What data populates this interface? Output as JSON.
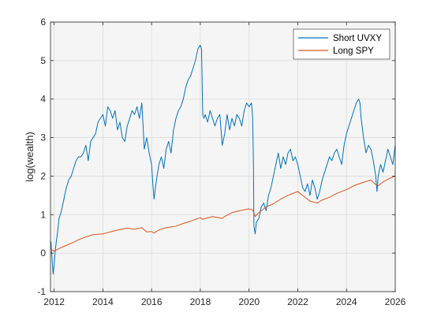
{
  "chart_data": {
    "type": "line",
    "xlabel": "",
    "ylabel": "log(wealth)",
    "xlim": [
      2011.85,
      2026.0
    ],
    "ylim": [
      -1,
      6
    ],
    "xticks": [
      2012,
      2014,
      2016,
      2018,
      2020,
      2022,
      2024,
      2026
    ],
    "yticks": [
      -1,
      0,
      1,
      2,
      3,
      4,
      5,
      6
    ],
    "grid": true,
    "legend": "top-right",
    "background": "#f5f5f5",
    "series": [
      {
        "name": "Short UVXY",
        "color": "#0072bd",
        "x": [
          2011.87,
          2011.92,
          2011.96,
          2012.0,
          2012.05,
          2012.1,
          2012.15,
          2012.2,
          2012.3,
          2012.4,
          2012.5,
          2012.6,
          2012.7,
          2012.8,
          2012.9,
          2013.0,
          2013.1,
          2013.2,
          2013.3,
          2013.4,
          2013.5,
          2013.6,
          2013.7,
          2013.8,
          2013.9,
          2014.0,
          2014.1,
          2014.2,
          2014.3,
          2014.4,
          2014.5,
          2014.6,
          2014.7,
          2014.8,
          2014.9,
          2015.0,
          2015.1,
          2015.2,
          2015.3,
          2015.4,
          2015.5,
          2015.6,
          2015.65,
          2015.7,
          2015.8,
          2015.9,
          2016.0,
          2016.05,
          2016.1,
          2016.2,
          2016.3,
          2016.4,
          2016.5,
          2016.6,
          2016.7,
          2016.8,
          2016.9,
          2017.0,
          2017.1,
          2017.2,
          2017.3,
          2017.4,
          2017.5,
          2017.6,
          2017.7,
          2017.8,
          2017.9,
          2018.0,
          2018.05,
          2018.08,
          2018.1,
          2018.15,
          2018.2,
          2018.3,
          2018.4,
          2018.5,
          2018.6,
          2018.7,
          2018.8,
          2018.9,
          2019.0,
          2019.1,
          2019.2,
          2019.3,
          2019.4,
          2019.5,
          2019.6,
          2019.7,
          2019.8,
          2019.9,
          2020.0,
          2020.1,
          2020.15,
          2020.18,
          2020.2,
          2020.25,
          2020.3,
          2020.4,
          2020.5,
          2020.6,
          2020.7,
          2020.8,
          2020.9,
          2021.0,
          2021.1,
          2021.2,
          2021.3,
          2021.4,
          2021.5,
          2021.6,
          2021.7,
          2021.8,
          2021.9,
          2022.0,
          2022.1,
          2022.2,
          2022.3,
          2022.4,
          2022.5,
          2022.6,
          2022.7,
          2022.8,
          2022.9,
          2023.0,
          2023.1,
          2023.2,
          2023.3,
          2023.4,
          2023.5,
          2023.6,
          2023.7,
          2023.8,
          2023.9,
          2024.0,
          2024.1,
          2024.2,
          2024.3,
          2024.4,
          2024.5,
          2024.55,
          2024.6,
          2024.7,
          2024.8,
          2024.9,
          2025.0,
          2025.1,
          2025.2,
          2025.25,
          2025.3,
          2025.4,
          2025.5,
          2025.6,
          2025.7,
          2025.8,
          2025.9,
          2026.0
        ],
        "y": [
          0.3,
          -0.2,
          -0.55,
          -0.3,
          0.1,
          0.35,
          0.6,
          0.9,
          1.1,
          1.4,
          1.7,
          1.9,
          2.0,
          2.2,
          2.4,
          2.5,
          2.5,
          2.6,
          2.8,
          2.4,
          2.9,
          3.0,
          3.1,
          3.4,
          3.5,
          3.6,
          3.3,
          3.8,
          3.7,
          3.5,
          3.7,
          3.2,
          3.4,
          3.0,
          2.9,
          3.3,
          3.5,
          3.7,
          3.6,
          3.8,
          3.5,
          3.9,
          3.3,
          2.7,
          3.0,
          2.6,
          2.3,
          1.8,
          1.4,
          1.9,
          2.3,
          2.5,
          2.2,
          2.7,
          2.9,
          2.6,
          3.2,
          3.5,
          3.7,
          3.8,
          4.0,
          4.3,
          4.5,
          4.6,
          4.8,
          5.0,
          5.3,
          5.4,
          5.3,
          4.2,
          3.6,
          3.5,
          3.6,
          3.4,
          3.7,
          3.5,
          3.3,
          3.5,
          3.6,
          2.8,
          3.1,
          3.6,
          3.2,
          3.5,
          3.3,
          3.6,
          3.5,
          3.3,
          3.7,
          3.9,
          3.8,
          3.9,
          3.5,
          2.3,
          0.7,
          0.5,
          0.8,
          0.9,
          1.2,
          1.3,
          1.1,
          1.5,
          1.7,
          2.0,
          2.3,
          2.6,
          2.2,
          2.5,
          2.3,
          2.6,
          2.7,
          2.4,
          2.5,
          2.3,
          2.0,
          1.7,
          1.6,
          1.8,
          1.5,
          1.9,
          1.7,
          1.4,
          1.6,
          1.9,
          2.1,
          2.3,
          2.5,
          2.4,
          2.6,
          2.7,
          2.5,
          2.3,
          2.8,
          3.1,
          3.3,
          3.5,
          3.7,
          3.9,
          4.0,
          3.9,
          3.5,
          3.0,
          2.6,
          2.8,
          2.7,
          2.4,
          2.0,
          1.6,
          2.0,
          2.3,
          2.1,
          2.4,
          2.7,
          2.5,
          2.3,
          2.8
        ]
      },
      {
        "name": "Long SPY",
        "color": "#d95319",
        "x": [
          2011.87,
          2012.0,
          2012.2,
          2012.5,
          2012.8,
          2013.0,
          2013.3,
          2013.6,
          2014.0,
          2014.3,
          2014.6,
          2015.0,
          2015.3,
          2015.6,
          2015.8,
          2016.0,
          2016.1,
          2016.3,
          2016.6,
          2017.0,
          2017.3,
          2017.6,
          2018.0,
          2018.1,
          2018.5,
          2018.9,
          2019.0,
          2019.3,
          2019.6,
          2020.0,
          2020.15,
          2020.25,
          2020.4,
          2020.7,
          2021.0,
          2021.3,
          2021.6,
          2022.0,
          2022.2,
          2022.5,
          2022.8,
          2023.0,
          2023.3,
          2023.6,
          2024.0,
          2024.3,
          2024.6,
          2025.0,
          2025.2,
          2025.3,
          2025.5,
          2025.8,
          2026.0
        ],
        "y": [
          0.1,
          0.05,
          0.12,
          0.2,
          0.28,
          0.35,
          0.42,
          0.48,
          0.5,
          0.55,
          0.6,
          0.65,
          0.62,
          0.66,
          0.55,
          0.56,
          0.52,
          0.6,
          0.66,
          0.7,
          0.77,
          0.83,
          0.92,
          0.88,
          0.95,
          0.9,
          0.95,
          1.05,
          1.1,
          1.15,
          1.12,
          0.95,
          1.05,
          1.2,
          1.28,
          1.4,
          1.5,
          1.6,
          1.5,
          1.35,
          1.3,
          1.38,
          1.45,
          1.55,
          1.65,
          1.75,
          1.82,
          1.9,
          1.78,
          1.75,
          1.85,
          1.95,
          2.0
        ]
      }
    ]
  }
}
